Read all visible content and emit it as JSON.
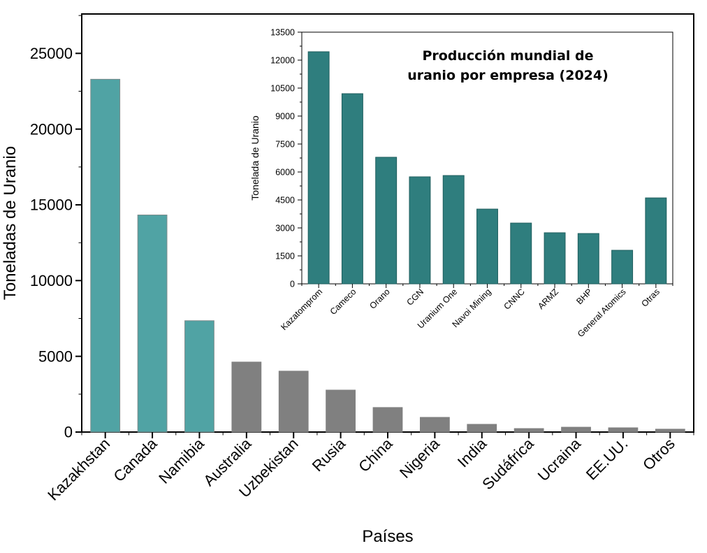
{
  "chart_data": [
    {
      "type": "bar",
      "xlabel": "Países",
      "ylabel": "Toneladas de Uranio",
      "ylim": [
        0,
        27600
      ],
      "yticks": [
        0,
        5000,
        10000,
        15000,
        20000,
        25000
      ],
      "categories": [
        "Kazakhstan",
        "Canada",
        "Namibia",
        "Australia",
        "Uzbekistan",
        "Rusia",
        "China",
        "Nigeria",
        "India",
        "Sudáfrica",
        "Ucraina",
        "EE.UU.",
        "Otros"
      ],
      "values": [
        23290,
        14330,
        7350,
        4620,
        4020,
        2770,
        1620,
        970,
        510,
        230,
        320,
        280,
        190
      ],
      "colors": [
        "#50a3a4",
        "#50a3a4",
        "#50a3a4",
        "#808080",
        "#808080",
        "#808080",
        "#808080",
        "#808080",
        "#808080",
        "#808080",
        "#808080",
        "#808080",
        "#808080"
      ],
      "grid": false
    },
    {
      "type": "bar",
      "title_lines": [
        "Producción mundial de",
        "uranio por empresa (2024)"
      ],
      "xlabel": "",
      "ylabel": "Tonelada de Uranio",
      "ylim": [
        0,
        13500
      ],
      "yticks": [
        0,
        1500,
        3000,
        4500,
        6000,
        7500,
        9000,
        10500,
        12000,
        13500
      ],
      "categories": [
        "Kazatomprom",
        "Cameco",
        "Orano",
        "CGN",
        "Uranium One",
        "Navoi Mining",
        "CNNC",
        "ARMZ",
        "BHP",
        "General Atomics",
        "Otras"
      ],
      "values": [
        12450,
        10200,
        6790,
        5740,
        5810,
        4010,
        3260,
        2740,
        2700,
        1800,
        4610
      ],
      "color": "#2f7e7e",
      "grid": false
    }
  ]
}
